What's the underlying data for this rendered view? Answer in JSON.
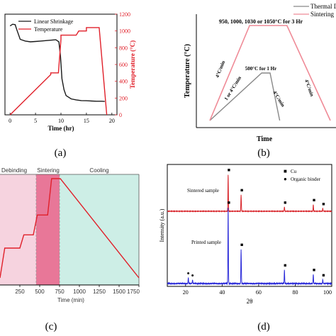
{
  "panel_labels": {
    "a": "(a)",
    "b": "(b)",
    "c": "(c)",
    "d": "(d)"
  },
  "colors": {
    "black": "#1a1a1a",
    "red": "#e0202a",
    "blue": "#2b2bd9",
    "sintered": "#d8242a",
    "pink_debinding": "#f6d3df",
    "pink_sintering": "#e04a76",
    "green_cooling": "#cdeee6"
  },
  "chart_data": [
    {
      "panel": "a",
      "type": "line",
      "xlabel": "Time (hr)",
      "ylabel_right": "Temperature (°C)",
      "xticks": [
        0,
        5,
        10,
        15,
        20
      ],
      "yticks_right": [
        0,
        200,
        400,
        600,
        800,
        1000,
        1200
      ],
      "xlim": [
        -1,
        21
      ],
      "ylim_right": [
        0,
        1200
      ],
      "legend": [
        "Linear Shrinkage",
        "Temperature"
      ],
      "series": [
        {
          "name": "Linear Shrinkage",
          "color": "#1a1a1a",
          "x": [
            0,
            0.5,
            1,
            1.3,
            2,
            3,
            4,
            5,
            6,
            7,
            8,
            9,
            9.6,
            9.9,
            10.2,
            10.6,
            11,
            12,
            13,
            14,
            15,
            16,
            17,
            18,
            18.6
          ],
          "y": [
            1060,
            1080,
            1075,
            1020,
            900,
            880,
            870,
            875,
            880,
            885,
            890,
            895,
            870,
            700,
            430,
            300,
            230,
            190,
            178,
            170,
            168,
            165,
            162,
            162,
            160
          ]
        },
        {
          "name": "Temperature",
          "color": "#e0202a",
          "x": [
            0,
            8,
            8,
            9.5,
            10,
            10,
            13,
            13.5,
            15,
            15,
            17.5,
            19
          ],
          "y": [
            0,
            480,
            500,
            500,
            900,
            950,
            950,
            1000,
            1000,
            1040,
            1040,
            0
          ]
        }
      ]
    },
    {
      "panel": "b",
      "type": "line",
      "xlabel": "Time",
      "ylabel": "Temperature (°C)",
      "legend": [
        "Thermal Debin",
        "Sintering"
      ],
      "annotations": [
        "950, 1000, 1030 or 1050°C for 3 Hr",
        "500°C for 1 Hr",
        "4°C/min",
        "1 or 4°C/min",
        "4°C/min",
        "4°C/min"
      ],
      "series": [
        {
          "name": "Thermal Debin",
          "color": "#888888",
          "x": [
            0,
            4.3,
            5,
            5.8
          ],
          "y": [
            0,
            500,
            500,
            0
          ]
        },
        {
          "name": "Sintering",
          "color": "#ef8a96",
          "x": [
            0,
            3.3,
            6.4,
            10
          ],
          "y": [
            0,
            1000,
            1000,
            0
          ]
        }
      ]
    },
    {
      "panel": "c",
      "type": "line",
      "xlabel": "Time (min)",
      "xticks": [
        250,
        500,
        750,
        1000,
        1250,
        1500,
        1750
      ],
      "xlim": [
        0,
        1750
      ],
      "regions": [
        "Debinding",
        "Sintering",
        "Cooling"
      ],
      "series": [
        {
          "name": "",
          "color": "#e0202a",
          "x": [
            0,
            60,
            100,
            250,
            300,
            420,
            470,
            600,
            650,
            750,
            760,
            1750
          ],
          "y": [
            0,
            180,
            180,
            180,
            260,
            260,
            380,
            380,
            600,
            600,
            600,
            0
          ]
        }
      ]
    },
    {
      "panel": "d",
      "type": "line",
      "xlabel": "2θ",
      "ylabel": "Intensity (a.u.)",
      "xticks": [
        20,
        40,
        60,
        80,
        100
      ],
      "xlim": [
        10,
        100
      ],
      "legend": [
        "Cu",
        "Organic binder"
      ],
      "series_labels": [
        "Sintered sample",
        "Printed sample"
      ],
      "series": [
        {
          "name": "Sintered sample",
          "color": "#d8242a",
          "peaks": [
            [
              43.3,
              1.0
            ],
            [
              50.4,
              0.45
            ],
            [
              74.1,
              0.12
            ],
            [
              89.9,
              0.18
            ],
            [
              95.1,
              0.08
            ]
          ]
        },
        {
          "name": "Printed sample",
          "color": "#2b2bd9",
          "peaks": [
            [
              21.5,
              0.08
            ],
            [
              23.8,
              0.05
            ],
            [
              43.3,
              1.0
            ],
            [
              50.4,
              0.45
            ],
            [
              74.1,
              0.18
            ],
            [
              89.9,
              0.12
            ],
            [
              95.1,
              0.05
            ]
          ]
        }
      ],
      "markers": {
        "cu": "■",
        "binder": "●"
      }
    }
  ]
}
